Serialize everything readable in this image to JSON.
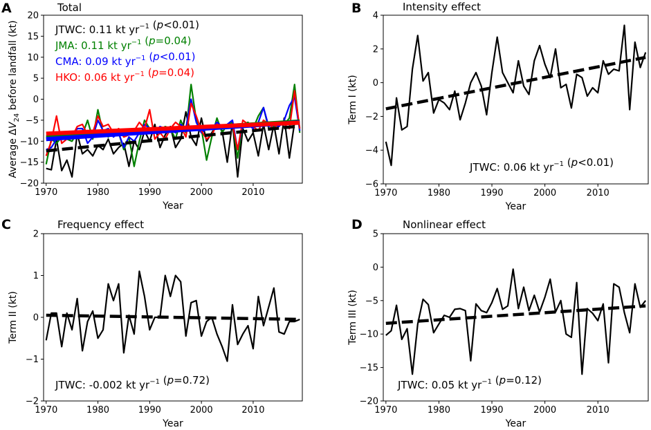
{
  "figure": {
    "panels": [
      {
        "letter": "A",
        "title": "Total"
      },
      {
        "letter": "B",
        "title": "Intensity effect"
      },
      {
        "letter": "C",
        "title": "Frequency effect"
      },
      {
        "letter": "D",
        "title": "Nonlinear effect"
      }
    ]
  },
  "chart_data": [
    {
      "type": "line",
      "panel": "A",
      "title": "Total",
      "xlabel": "Year",
      "ylabel": "Average ΔV24 before landfall (kt)",
      "xlim": [
        1969.5,
        2019.5
      ],
      "ylim": [
        -20,
        20
      ],
      "xticks": [
        1970,
        1980,
        1990,
        2000,
        2010
      ],
      "yticks": [
        -20,
        -15,
        -10,
        -5,
        0,
        5,
        10,
        15,
        20
      ],
      "x": [
        1970,
        1971,
        1972,
        1973,
        1974,
        1975,
        1976,
        1977,
        1978,
        1979,
        1980,
        1981,
        1982,
        1983,
        1984,
        1985,
        1986,
        1987,
        1988,
        1989,
        1990,
        1991,
        1992,
        1993,
        1994,
        1995,
        1996,
        1997,
        1998,
        1999,
        2000,
        2001,
        2002,
        2003,
        2004,
        2005,
        2006,
        2007,
        2008,
        2009,
        2010,
        2011,
        2012,
        2013,
        2014,
        2015,
        2016,
        2017,
        2018,
        2019
      ],
      "series": [
        {
          "name": "JTWC",
          "color": "#000000",
          "values": [
            -16.5,
            -16.8,
            -9.5,
            -17.0,
            -14.5,
            -18.5,
            -8.2,
            -13.0,
            -12.0,
            -13.5,
            -11.0,
            -12.0,
            -9.5,
            -13.0,
            -11.5,
            -10.5,
            -16.0,
            -10.0,
            -12.0,
            -7.5,
            -10.0,
            -6.0,
            -11.5,
            -8.5,
            -6.5,
            -11.5,
            -9.5,
            -3.0,
            -9.0,
            -11.0,
            -4.5,
            -10.0,
            -8.0,
            -6.0,
            -7.5,
            -15.0,
            -5.5,
            -18.5,
            -7.0,
            -10.0,
            -8.0,
            -13.5,
            -6.0,
            -12.0,
            -6.0,
            -13.0,
            -4.5,
            -14.0,
            -5.5,
            -6.0
          ],
          "trend": [
            -12.3,
            -6.4
          ],
          "label": "JTWC: 0.11 kt yr⁻¹ (p<0.01)"
        },
        {
          "name": "JMA",
          "color": "#008000",
          "values": [
            -15.5,
            -9.5,
            -10.5,
            -9.0,
            -9.5,
            -10.0,
            -8.0,
            -8.5,
            -5.0,
            -9.5,
            -2.5,
            -8.0,
            -9.0,
            -7.5,
            -8.0,
            -12.0,
            -9.0,
            -16.0,
            -10.0,
            -5.0,
            -7.0,
            -8.0,
            -7.5,
            -6.5,
            -7.0,
            -9.5,
            -5.0,
            -8.0,
            3.5,
            -5.0,
            -7.0,
            -14.5,
            -9.0,
            -4.5,
            -8.0,
            -6.0,
            -5.5,
            -14.0,
            -6.0,
            -5.5,
            -7.0,
            -4.0,
            -2.0,
            -7.0,
            -6.5,
            -6.0,
            -6.0,
            -4.5,
            3.5,
            -8.0
          ],
          "trend": [
            -9.1,
            -5.3
          ],
          "label": "JMA: 0.11 kt yr⁻¹ (p=0.04)"
        },
        {
          "name": "CMA",
          "color": "#0000ff",
          "values": [
            -12.0,
            -11.5,
            -9.5,
            -8.5,
            -8.0,
            -9.0,
            -7.0,
            -7.0,
            -10.5,
            -9.0,
            -5.0,
            -7.5,
            -7.0,
            -9.0,
            -8.0,
            -11.5,
            -9.0,
            -10.0,
            -8.0,
            -6.0,
            -7.0,
            -8.0,
            -6.5,
            -7.0,
            -7.0,
            -8.0,
            -6.0,
            -7.0,
            0.0,
            -5.5,
            -8.0,
            -7.0,
            -7.0,
            -5.5,
            -6.5,
            -6.0,
            -5.0,
            -12.0,
            -6.0,
            -6.0,
            -7.0,
            -5.5,
            -2.0,
            -6.5,
            -6.0,
            -6.5,
            -5.0,
            -1.5,
            0.5,
            -7.5
          ],
          "trend": [
            -9.5,
            -5.5
          ],
          "label": "CMA: 0.09 kt yr⁻¹ (p<0.01)"
        },
        {
          "name": "HKO",
          "color": "#ff0000",
          "values": [
            -13.5,
            -10.0,
            -4.0,
            -10.5,
            -9.5,
            -9.0,
            -6.5,
            -6.0,
            -8.5,
            -8.0,
            -4.0,
            -6.5,
            -6.0,
            -8.0,
            -7.0,
            -9.0,
            -8.5,
            -7.5,
            -5.5,
            -7.0,
            -2.5,
            -9.5,
            -8.0,
            -9.5,
            -7.0,
            -5.5,
            -6.5,
            -9.0,
            -1.0,
            -4.0,
            -7.5,
            -9.5,
            -8.5,
            -6.0,
            -7.0,
            -6.5,
            -6.0,
            -12.0,
            -5.0,
            -6.0,
            -6.5,
            -7.5,
            -5.0,
            -6.0,
            -7.0,
            -5.5,
            -6.0,
            -7.0,
            2.0,
            -7.0
          ],
          "trend": [
            -8.2,
            -5.6
          ],
          "label": "HKO: 0.06 kt yr⁻¹ (p=0.04)"
        }
      ]
    },
    {
      "type": "line",
      "panel": "B",
      "title": "Intensity effect",
      "xlabel": "Year",
      "ylabel": "Term I (kt)",
      "xlim": [
        1969.5,
        2019.5
      ],
      "ylim": [
        -6,
        4
      ],
      "xticks": [
        1970,
        1980,
        1990,
        2000,
        2010
      ],
      "yticks": [
        -6,
        -4,
        -2,
        0,
        2,
        4
      ],
      "x": [
        1970,
        1971,
        1972,
        1973,
        1974,
        1975,
        1976,
        1977,
        1978,
        1979,
        1980,
        1981,
        1982,
        1983,
        1984,
        1985,
        1986,
        1987,
        1988,
        1989,
        1990,
        1991,
        1992,
        1993,
        1994,
        1995,
        1996,
        1997,
        1998,
        1999,
        2000,
        2001,
        2002,
        2003,
        2004,
        2005,
        2006,
        2007,
        2008,
        2009,
        2010,
        2011,
        2012,
        2013,
        2014,
        2015,
        2016,
        2017,
        2018,
        2019
      ],
      "series": [
        {
          "name": "JTWC",
          "color": "#000000",
          "values": [
            -3.5,
            -4.9,
            -0.9,
            -2.8,
            -2.6,
            0.8,
            2.8,
            0.1,
            0.6,
            -1.8,
            -1.0,
            -1.2,
            -1.6,
            -0.5,
            -2.2,
            -1.2,
            0.0,
            0.6,
            -0.2,
            -1.9,
            0.6,
            2.7,
            0.6,
            0.0,
            -0.6,
            1.3,
            -0.2,
            -0.7,
            1.3,
            2.2,
            1.1,
            0.3,
            2.0,
            -0.3,
            -0.1,
            -1.5,
            0.5,
            0.3,
            -0.8,
            -0.3,
            -0.6,
            1.3,
            0.5,
            0.8,
            0.7,
            3.4,
            -1.6,
            2.4,
            0.9,
            1.8
          ],
          "trend": [
            -1.55,
            1.5
          ]
        }
      ],
      "annotation": "JTWC: 0.06 kt yr⁻¹ (p<0.01)"
    },
    {
      "type": "line",
      "panel": "C",
      "title": "Frequency effect",
      "xlabel": "Year",
      "ylabel": "Term II (kt)",
      "xlim": [
        1969.5,
        2019.5
      ],
      "ylim": [
        -2,
        2
      ],
      "xticks": [
        1970,
        1980,
        1990,
        2000,
        2010
      ],
      "yticks": [
        -2,
        -1,
        0,
        1,
        2
      ],
      "x": [
        1970,
        1971,
        1972,
        1973,
        1974,
        1975,
        1976,
        1977,
        1978,
        1979,
        1980,
        1981,
        1982,
        1983,
        1984,
        1985,
        1986,
        1987,
        1988,
        1989,
        1990,
        1991,
        1992,
        1993,
        1994,
        1995,
        1996,
        1997,
        1998,
        1999,
        2000,
        2001,
        2002,
        2003,
        2004,
        2005,
        2006,
        2007,
        2008,
        2009,
        2010,
        2011,
        2012,
        2013,
        2014,
        2015,
        2016,
        2017,
        2018,
        2019
      ],
      "series": [
        {
          "name": "JTWC",
          "color": "#000000",
          "values": [
            -0.55,
            0.1,
            0.1,
            -0.7,
            0.1,
            -0.3,
            0.45,
            -0.8,
            -0.1,
            0.15,
            -0.5,
            -0.3,
            0.8,
            0.4,
            0.8,
            -0.85,
            0.05,
            -0.4,
            1.1,
            0.5,
            -0.3,
            0.0,
            0.0,
            1.0,
            0.5,
            1.0,
            0.85,
            -0.45,
            0.35,
            0.4,
            -0.45,
            -0.1,
            0.0,
            -0.4,
            -0.7,
            -1.05,
            0.3,
            -0.65,
            -0.4,
            -0.2,
            -0.75,
            0.5,
            -0.2,
            0.25,
            0.7,
            -0.35,
            -0.4,
            -0.1,
            -0.1,
            -0.05
          ],
          "trend": [
            0.05,
            -0.05
          ]
        }
      ],
      "annotation": "JTWC: -0.002 kt yr⁻¹ (p=0.72)"
    },
    {
      "type": "line",
      "panel": "D",
      "title": "Nonlinear effect",
      "xlabel": "Year",
      "ylabel": "Term III (kt)",
      "xlim": [
        1969.5,
        2019.5
      ],
      "ylim": [
        -20,
        5
      ],
      "xticks": [
        1970,
        1980,
        1990,
        2000,
        2010
      ],
      "yticks": [
        -20,
        -15,
        -10,
        -5,
        0,
        5
      ],
      "x": [
        1970,
        1971,
        1972,
        1973,
        1974,
        1975,
        1976,
        1977,
        1978,
        1979,
        1980,
        1981,
        1982,
        1983,
        1984,
        1985,
        1986,
        1987,
        1988,
        1989,
        1990,
        1991,
        1992,
        1993,
        1994,
        1995,
        1996,
        1997,
        1998,
        1999,
        2000,
        2001,
        2002,
        2003,
        2004,
        2005,
        2006,
        2007,
        2008,
        2009,
        2010,
        2011,
        2012,
        2013,
        2014,
        2015,
        2016,
        2017,
        2018,
        2019
      ],
      "series": [
        {
          "name": "JTWC",
          "color": "#000000",
          "values": [
            -10.2,
            -9.5,
            -5.7,
            -10.8,
            -9.2,
            -16.0,
            -8.5,
            -4.8,
            -5.6,
            -9.8,
            -8.5,
            -7.2,
            -7.5,
            -6.3,
            -6.2,
            -6.5,
            -14.0,
            -5.5,
            -6.5,
            -6.8,
            -5.3,
            -3.2,
            -6.3,
            -5.8,
            -0.3,
            -6.2,
            -3.0,
            -6.5,
            -4.2,
            -6.7,
            -4.5,
            -1.8,
            -6.7,
            -5.0,
            -10.0,
            -10.5,
            -2.3,
            -16.0,
            -6.2,
            -6.9,
            -8.0,
            -5.5,
            -14.3,
            -2.5,
            -3.0,
            -6.8,
            -9.8,
            -2.5,
            -6.0,
            -5.0
          ],
          "trend": [
            -8.4,
            -5.8
          ]
        }
      ],
      "annotation": "JTWC: 0.05 kt yr⁻¹ (p=0.12)"
    }
  ]
}
